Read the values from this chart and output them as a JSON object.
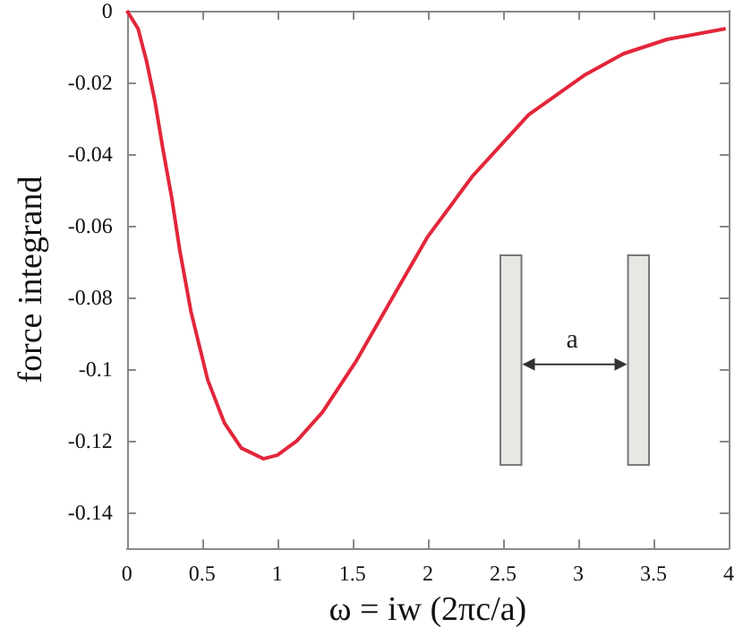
{
  "chart_data": {
    "type": "line",
    "xlabel": "ω = iw (2πc/a)",
    "ylabel": "force integrand",
    "x": [
      0,
      0.074,
      0.13,
      0.185,
      0.241,
      0.297,
      0.352,
      0.426,
      0.537,
      0.648,
      0.76,
      0.908,
      1.0,
      1.13,
      1.3,
      1.52,
      1.78,
      2.0,
      2.3,
      2.67,
      3.04,
      3.3,
      3.59,
      3.98
    ],
    "series": [
      {
        "color": "#e3263a",
        "values": [
          0,
          -0.005,
          -0.014,
          -0.025,
          -0.039,
          -0.052,
          -0.067,
          -0.084,
          -0.103,
          -0.115,
          -0.122,
          -0.125,
          -0.124,
          -0.12,
          -0.112,
          -0.098,
          -0.079,
          -0.063,
          -0.046,
          -0.029,
          -0.018,
          -0.012,
          -0.008,
          -0.005
        ]
      }
    ],
    "xlim": [
      0,
      4
    ],
    "xticks": [
      0,
      0.5,
      1,
      1.5,
      2,
      2.5,
      3,
      3.5,
      4
    ],
    "ylim": [
      -0.15,
      0
    ],
    "yticks": [
      -0.14,
      -0.12,
      -0.1,
      -0.08,
      -0.06,
      -0.04,
      -0.02,
      0
    ],
    "annotations": [
      "a"
    ],
    "marker": "none",
    "line_style": "solid"
  }
}
